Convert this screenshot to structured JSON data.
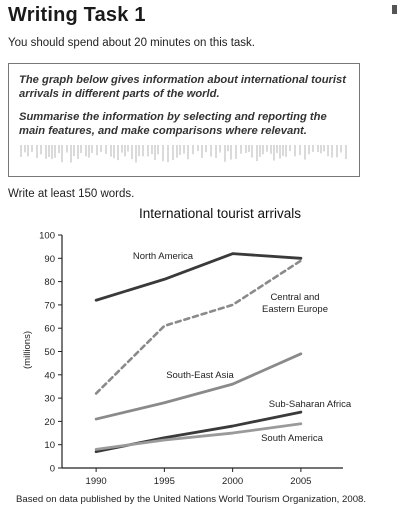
{
  "header": {
    "title": "Writing Task 1",
    "instruction": "You should spend about 20 minutes on this task."
  },
  "task_box": {
    "prompt": "The graph below gives information about international tourist arrivals in different parts of the world.",
    "instruction": "Summarise the information by selecting and reporting the main features, and make comparisons where relevant."
  },
  "word_requirement": "Write at least 150 words.",
  "chart_data": {
    "type": "line",
    "title": "International tourist arrivals",
    "ylabel": "(millions)",
    "xlabel": "",
    "x": [
      1990,
      1995,
      2000,
      2005
    ],
    "yticks": [
      0,
      10,
      20,
      30,
      40,
      50,
      60,
      70,
      80,
      90,
      100
    ],
    "ylim": [
      0,
      100
    ],
    "grid": false,
    "series": [
      {
        "name": "North America",
        "values": [
          72,
          81,
          92,
          90
        ],
        "style": "solid",
        "color": "#3a3a3a"
      },
      {
        "name": "Central and Eastern Europe",
        "values": [
          32,
          61,
          70,
          89
        ],
        "style": "dashed",
        "color": "#8a8a8a"
      },
      {
        "name": "South-East Asia",
        "values": [
          21,
          28,
          36,
          49
        ],
        "style": "solid",
        "color": "#8a8a8a"
      },
      {
        "name": "Sub-Saharan Africa",
        "values": [
          7,
          13,
          18,
          24
        ],
        "style": "solid",
        "color": "#3a3a3a"
      },
      {
        "name": "South America",
        "values": [
          8,
          12,
          15,
          19
        ],
        "style": "solid",
        "color": "#9a9a9a"
      }
    ]
  },
  "source_note": "Based on data published by the United Nations World Tourism Organization, 2008."
}
